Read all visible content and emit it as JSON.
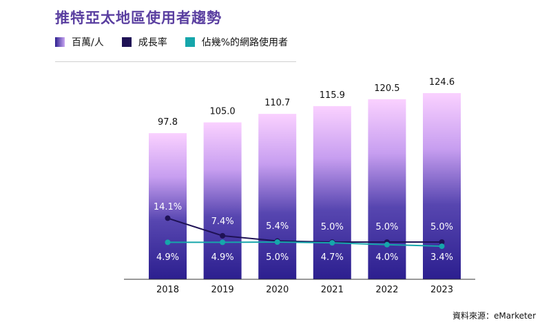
{
  "title": "推特亞太地區使用者趨勢",
  "legend": [
    {
      "label": "百萬/人",
      "color": "#5b3fa6"
    },
    {
      "label": "成長率",
      "color": "#1f1255"
    },
    {
      "label": "佔幾%的網路使用者",
      "color": "#16a6ab"
    }
  ],
  "source": "資料來源：eMarketer",
  "colors": {
    "bar_top": "#fad1ff",
    "bar_bottom": "#2c1f8f",
    "growth": "#1f1255",
    "share": "#16a6ab"
  },
  "chart_data": {
    "type": "bar",
    "categories": [
      "2018",
      "2019",
      "2020",
      "2021",
      "2022",
      "2023"
    ],
    "series": [
      {
        "name": "百萬/人",
        "type": "bar",
        "values": [
          97.8,
          105.0,
          110.7,
          115.9,
          120.5,
          124.6
        ],
        "labels": [
          "97.8",
          "105.0",
          "110.7",
          "115.9",
          "120.5",
          "124.6"
        ]
      },
      {
        "name": "成長率",
        "type": "line",
        "values": [
          14.1,
          7.4,
          5.4,
          5.0,
          5.0,
          5.0
        ],
        "labels": [
          "14.1%",
          "7.4%",
          "5.4%",
          "5.0%",
          "5.0%",
          "5.0%"
        ]
      },
      {
        "name": "佔幾%的網路使用者",
        "type": "line",
        "values": [
          4.9,
          4.9,
          5.0,
          4.7,
          4.0,
          3.4
        ],
        "labels": [
          "4.9%",
          "4.9%",
          "5.0%",
          "4.7%",
          "4.0%",
          "3.4%"
        ]
      }
    ],
    "ylim": [
      0,
      130
    ],
    "grid": false,
    "legend_position": "top-left"
  }
}
